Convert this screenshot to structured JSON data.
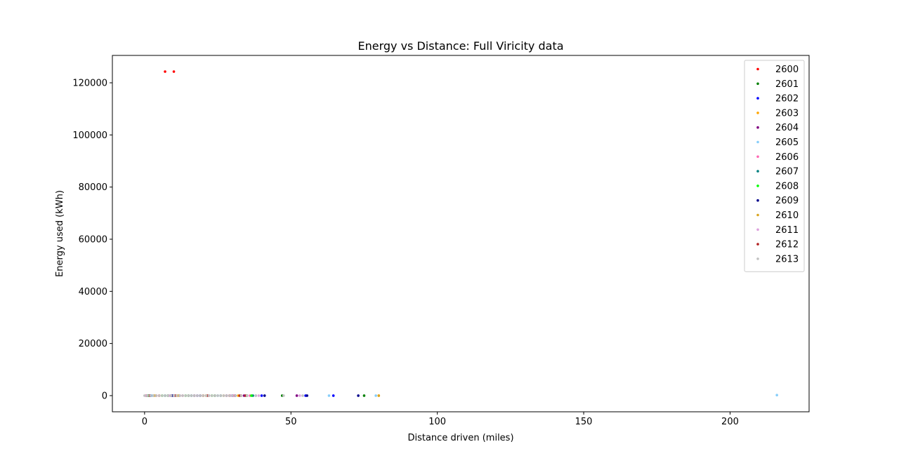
{
  "chart_data": {
    "type": "scatter",
    "title": "Energy vs Distance: Full Viricity data",
    "xlabel": "Distance driven (miles)",
    "ylabel": "Energy used (kWh)",
    "xlim": [
      -11,
      227
    ],
    "ylim": [
      -6200,
      130500
    ],
    "xticks": [
      0,
      50,
      100,
      150,
      200
    ],
    "yticks": [
      0,
      20000,
      40000,
      60000,
      80000,
      100000,
      120000
    ],
    "grid": false,
    "legend_position": "top-right",
    "series": [
      {
        "name": "2600",
        "color": "#ff0000",
        "points": [
          [
            7,
            124300
          ],
          [
            10,
            124300
          ],
          [
            0.5,
            0
          ],
          [
            5,
            0
          ],
          [
            12,
            0
          ],
          [
            20,
            0
          ],
          [
            29,
            0
          ],
          [
            33,
            0
          ]
        ]
      },
      {
        "name": "2601",
        "color": "#008000",
        "points": [
          [
            1,
            0
          ],
          [
            8,
            0
          ],
          [
            15,
            0
          ],
          [
            24,
            0
          ],
          [
            35,
            0
          ],
          [
            47,
            0
          ],
          [
            75,
            0
          ]
        ]
      },
      {
        "name": "2602",
        "color": "#0000ff",
        "points": [
          [
            2,
            0
          ],
          [
            10,
            0
          ],
          [
            18,
            0
          ],
          [
            30,
            0
          ],
          [
            40,
            0
          ],
          [
            55,
            0
          ],
          [
            64.5,
            0
          ]
        ]
      },
      {
        "name": "2603",
        "color": "#ffa500",
        "points": [
          [
            3,
            0
          ],
          [
            11,
            0
          ],
          [
            21,
            0
          ],
          [
            32,
            0
          ],
          [
            80,
            0
          ]
        ]
      },
      {
        "name": "2604",
        "color": "#800080",
        "points": [
          [
            1.5,
            0
          ],
          [
            9,
            0
          ],
          [
            17,
            0
          ],
          [
            28,
            0
          ],
          [
            34,
            0
          ],
          [
            52,
            0
          ]
        ]
      },
      {
        "name": "2605",
        "color": "#87cefa",
        "points": [
          [
            2.5,
            0
          ],
          [
            12,
            0
          ],
          [
            25,
            0
          ],
          [
            38,
            0
          ],
          [
            63,
            0
          ],
          [
            79,
            0
          ],
          [
            216,
            200
          ]
        ]
      },
      {
        "name": "2606",
        "color": "#ff69b4",
        "points": [
          [
            4,
            0
          ],
          [
            13,
            0
          ],
          [
            22,
            0
          ],
          [
            30.5,
            0
          ],
          [
            36,
            0
          ]
        ]
      },
      {
        "name": "2607",
        "color": "#008080",
        "points": [
          [
            0.8,
            0
          ],
          [
            7,
            0
          ],
          [
            16,
            0
          ],
          [
            26,
            0
          ],
          [
            37,
            0
          ]
        ]
      },
      {
        "name": "2608",
        "color": "#00ff00",
        "points": [
          [
            1.2,
            0
          ],
          [
            6,
            0
          ],
          [
            14,
            0
          ],
          [
            23,
            0
          ],
          [
            36.5,
            0
          ]
        ]
      },
      {
        "name": "2609",
        "color": "#00008b",
        "points": [
          [
            2,
            0
          ],
          [
            9.5,
            0
          ],
          [
            19,
            0
          ],
          [
            31,
            0
          ],
          [
            41,
            0
          ],
          [
            55.5,
            0
          ],
          [
            73,
            0
          ]
        ]
      },
      {
        "name": "2610",
        "color": "#daa520",
        "points": [
          [
            3.5,
            0
          ],
          [
            11.5,
            0
          ],
          [
            20,
            0
          ],
          [
            27,
            0
          ],
          [
            80,
            0
          ]
        ]
      },
      {
        "name": "2611",
        "color": "#dda0dd",
        "points": [
          [
            0.6,
            0
          ],
          [
            8.5,
            0
          ],
          [
            18,
            0
          ],
          [
            29.5,
            0
          ],
          [
            39,
            0
          ],
          [
            53,
            0
          ]
        ]
      },
      {
        "name": "2612",
        "color": "#b22222",
        "points": [
          [
            1.8,
            0
          ],
          [
            10.5,
            0
          ],
          [
            21.5,
            0
          ],
          [
            32.5,
            0
          ],
          [
            34.5,
            0
          ]
        ]
      },
      {
        "name": "2613",
        "color": "#c0c0c0",
        "points": [
          [
            0,
            0
          ],
          [
            1,
            0
          ],
          [
            2,
            0
          ],
          [
            3,
            0
          ],
          [
            4,
            0
          ],
          [
            5,
            0
          ],
          [
            6,
            0
          ],
          [
            7,
            0
          ],
          [
            8,
            0
          ],
          [
            9,
            0
          ],
          [
            10,
            0
          ],
          [
            11,
            0
          ],
          [
            12,
            0
          ],
          [
            13,
            0
          ],
          [
            14,
            0
          ],
          [
            15,
            0
          ],
          [
            16,
            0
          ],
          [
            17,
            0
          ],
          [
            18,
            0
          ],
          [
            19,
            0
          ],
          [
            20,
            0
          ],
          [
            21,
            0
          ],
          [
            22,
            0
          ],
          [
            23,
            0
          ],
          [
            24,
            0
          ],
          [
            25,
            0
          ],
          [
            26,
            0
          ],
          [
            27,
            0
          ],
          [
            28,
            0
          ],
          [
            29,
            0
          ],
          [
            30,
            0
          ],
          [
            31,
            0
          ],
          [
            33,
            0
          ],
          [
            35,
            0
          ],
          [
            38,
            0
          ],
          [
            47.5,
            0
          ],
          [
            54,
            0
          ]
        ]
      }
    ]
  }
}
